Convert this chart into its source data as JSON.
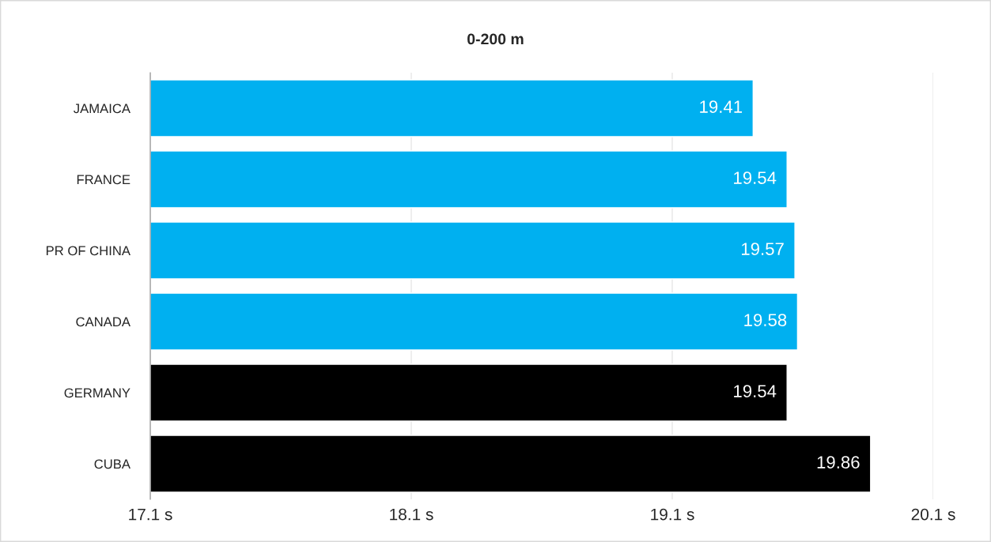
{
  "chart_data": {
    "type": "bar",
    "orientation": "horizontal",
    "title": "0-200 m",
    "categories": [
      "JAMAICA",
      "FRANCE",
      "PR OF CHINA",
      "CANADA",
      "GERMANY",
      "CUBA"
    ],
    "values": [
      19.41,
      19.54,
      19.57,
      19.58,
      19.54,
      19.86
    ],
    "colors": [
      "#00b0f0",
      "#00b0f0",
      "#00b0f0",
      "#00b0f0",
      "#000000",
      "#000000"
    ],
    "xlim": [
      17.1,
      20.1
    ],
    "xticks": [
      {
        "value": 17.1,
        "label": "17.1 s"
      },
      {
        "value": 18.1,
        "label": "18.1 s"
      },
      {
        "value": 19.1,
        "label": "19.1 s"
      },
      {
        "value": 20.1,
        "label": "20.1 s"
      }
    ],
    "grid": "x",
    "data_labels": true
  }
}
